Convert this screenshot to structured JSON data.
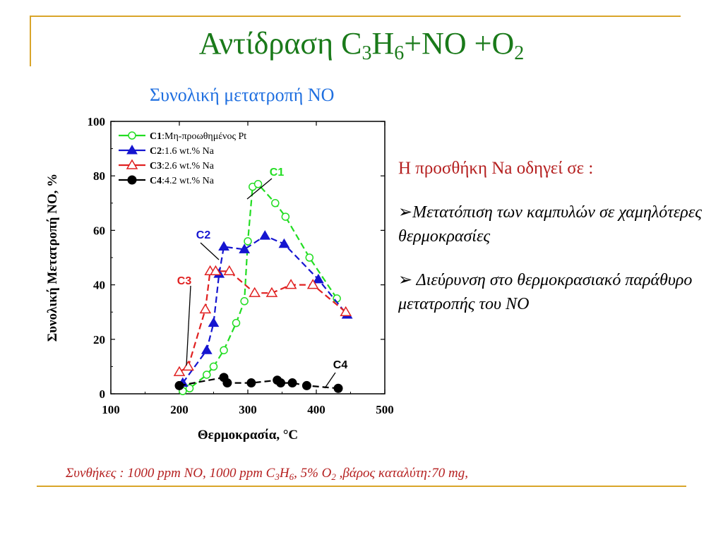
{
  "title": {
    "text": "Αντίδραση ",
    "c": "C",
    "c_sub": "3",
    "h": "H",
    "h_sub": "6",
    "rest": "+NO +O",
    "o_sub": "2"
  },
  "subtitle": "Συνολική μετατροπή NO",
  "side": {
    "heading": "Η προσθήκη Na οδηγεί σε :",
    "bullet_glyph": "➢",
    "bullet1": "Μετατόπιση των καμπυλών σε χαμηλότερες θερμοκρασίες",
    "bullet2": " Διεύρυνση στο θερμοκρασιακό παράθυρο μετατροπής του NO"
  },
  "conditions": {
    "part1": "Συνθήκες : 1000 ppm NO, 1000 ppm C",
    "sub1": "3",
    "part2": "H",
    "sub2": "6",
    "part3": ", 5% O",
    "sub3": "2",
    "part4": " ,βάρος καταλύτη:70 mg,"
  },
  "colors": {
    "title": "#1a7a1a",
    "subtitle": "#1f6fe0",
    "accent_red": "#b52020",
    "frame": "#d9a52a",
    "c1": "#22dd22",
    "c2": "#1515d0",
    "c3": "#e02020",
    "c4": "#000000"
  },
  "chart_data": {
    "type": "line",
    "xlabel": "Θερμοκρασία, °C",
    "ylabel": "Συνολική Μετατροπή NO, %",
    "xlim": [
      100,
      500
    ],
    "ylim": [
      0,
      100
    ],
    "xticks": [
      "100",
      "200",
      "300",
      "400",
      "500"
    ],
    "yticks": [
      "0",
      "20",
      "40",
      "60",
      "80",
      "100"
    ],
    "legend_position": "top-left",
    "series": [
      {
        "key": "c1",
        "legend_bold": "C1",
        "legend_rest": ":Μη-προωθημένος Pt",
        "callout": "C1",
        "marker": "circle-open",
        "x": [
          205,
          215,
          240,
          250,
          265,
          283,
          295,
          300,
          307,
          315,
          340,
          355,
          390,
          430
        ],
        "y": [
          1,
          2,
          7,
          10,
          16,
          26,
          34,
          56,
          76,
          77,
          70,
          65,
          50,
          35
        ]
      },
      {
        "key": "c2",
        "legend_bold": "C2",
        "legend_rest": ":1.6 wt.% Na",
        "callout": "C2",
        "marker": "triangle-filled",
        "x": [
          205,
          240,
          250,
          258,
          265,
          295,
          325,
          353,
          403,
          445
        ],
        "y": [
          4,
          16,
          26,
          44,
          54,
          53,
          58,
          55,
          42,
          29
        ]
      },
      {
        "key": "c3",
        "legend_bold": "C3",
        "legend_rest": ":2.6 wt.% Na",
        "callout": "C3",
        "marker": "triangle-open",
        "x": [
          200,
          213,
          238,
          245,
          253,
          273,
          310,
          335,
          363,
          395,
          443
        ],
        "y": [
          8,
          10,
          31,
          45,
          45,
          45,
          37,
          37,
          40,
          40,
          30
        ]
      },
      {
        "key": "c4",
        "legend_bold": "C4",
        "legend_rest": ":4.2 wt.% Na",
        "callout": "C4",
        "marker": "circle-filled",
        "x": [
          200,
          265,
          270,
          305,
          343,
          348,
          365,
          386,
          432
        ],
        "y": [
          3,
          6,
          4,
          4,
          5,
          4,
          4,
          3,
          2
        ]
      }
    ]
  }
}
